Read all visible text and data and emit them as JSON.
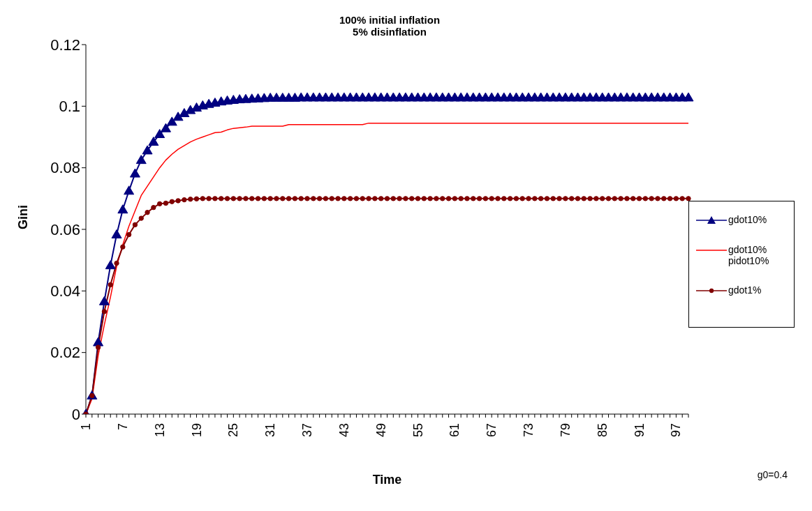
{
  "chart_data": {
    "type": "line",
    "title": "100% initial inflation",
    "subtitle": "5% disinflation",
    "xlabel": "Time",
    "ylabel": "Gini",
    "annotations": [
      "g0=0.4"
    ],
    "categories": [
      "1",
      null,
      null,
      null,
      null,
      null,
      "7",
      null,
      null,
      null,
      null,
      null,
      "13",
      null,
      null,
      null,
      null,
      null,
      "19",
      null,
      null,
      null,
      null,
      null,
      "25",
      null,
      null,
      null,
      null,
      null,
      "31",
      null,
      null,
      null,
      null,
      null,
      "37",
      null,
      null,
      null,
      null,
      null,
      "43",
      null,
      null,
      null,
      null,
      null,
      "49",
      null,
      null,
      null,
      null,
      null,
      "55",
      null,
      null,
      null,
      null,
      null,
      "61",
      null,
      null,
      null,
      null,
      null,
      "67",
      null,
      null,
      null,
      null,
      null,
      "73",
      null,
      null,
      null,
      null,
      null,
      "79",
      null,
      null,
      null,
      null,
      null,
      "85",
      null,
      null,
      null,
      null,
      null,
      "91",
      null,
      null,
      null,
      null,
      null,
      "97",
      null,
      null
    ],
    "series": [
      {
        "name": "gdot10%",
        "color": "#000080",
        "marker": "triangle",
        "values": [
          0,
          0.006,
          0.0233,
          0.0366,
          0.0483,
          0.0583,
          0.0664,
          0.0725,
          0.0781,
          0.0825,
          0.0856,
          0.0884,
          0.0909,
          0.0928,
          0.0949,
          0.0965,
          0.0977,
          0.0987,
          0.0995,
          0.1002,
          0.1007,
          0.1011,
          0.1015,
          0.1018,
          0.102,
          0.1022,
          0.1023,
          0.1024,
          0.1025,
          0.1026,
          0.1027,
          0.1027,
          0.1027,
          0.1027,
          0.1027,
          0.1028,
          0.1028,
          0.1028,
          0.1028,
          0.1028,
          0.1028,
          0.1028,
          0.1028,
          0.1028,
          0.1028,
          0.1028,
          0.1028,
          0.1028,
          0.1028,
          0.1028,
          0.1028,
          0.1028,
          0.1028,
          0.1028,
          0.1028,
          0.1028,
          0.1028,
          0.1028,
          0.1028,
          0.1028,
          0.1028,
          0.1028,
          0.1028,
          0.1028,
          0.1028,
          0.1028,
          0.1028,
          0.1028,
          0.1028,
          0.1028,
          0.1028,
          0.1028,
          0.1028,
          0.1028,
          0.1028,
          0.1028,
          0.1028,
          0.1028,
          0.1028,
          0.1028,
          0.1028,
          0.1028,
          0.1028,
          0.1028,
          0.1028,
          0.1028,
          0.1028,
          0.1028,
          0.1028,
          0.1028,
          0.1028,
          0.1028,
          0.1028,
          0.1028,
          0.1028,
          0.1028,
          0.1028,
          0.1028,
          0.1028
        ]
      },
      {
        "name": "gdot10%\npidot10%",
        "color": "#ff0000",
        "marker": "none",
        "values": [
          0,
          0.005,
          0.019,
          0.029,
          0.038,
          0.048,
          0.055,
          0.061,
          0.066,
          0.071,
          0.074,
          0.077,
          0.08,
          0.0825,
          0.0844,
          0.086,
          0.0872,
          0.0884,
          0.0893,
          0.09,
          0.0907,
          0.0914,
          0.0916,
          0.0923,
          0.0928,
          0.093,
          0.0932,
          0.0935,
          0.0935,
          0.0935,
          0.0935,
          0.0935,
          0.0935,
          0.094,
          0.094,
          0.094,
          0.094,
          0.094,
          0.094,
          0.094,
          0.094,
          0.094,
          0.094,
          0.094,
          0.094,
          0.094,
          0.0945,
          0.0945,
          0.0945,
          0.0945,
          0.0945,
          0.0945,
          0.0945,
          0.0945,
          0.0945,
          0.0945,
          0.0945,
          0.0945,
          0.0945,
          0.0945,
          0.0945,
          0.0945,
          0.0945,
          0.0945,
          0.0945,
          0.0945,
          0.0945,
          0.0945,
          0.0945,
          0.0945,
          0.0945,
          0.0945,
          0.0945,
          0.0945,
          0.0945,
          0.0945,
          0.0945,
          0.0945,
          0.0945,
          0.0945,
          0.0945,
          0.0945,
          0.0945,
          0.0945,
          0.0945,
          0.0945,
          0.0945,
          0.0945,
          0.0945,
          0.0945,
          0.0945,
          0.0945,
          0.0945,
          0.0945,
          0.0945,
          0.0945,
          0.0945,
          0.0945,
          0.0945
        ]
      },
      {
        "name": "gdot1%",
        "color": "#800000",
        "marker": "circle",
        "values": [
          0,
          0.006,
          0.0217,
          0.0333,
          0.042,
          0.049,
          0.0543,
          0.0583,
          0.0615,
          0.0636,
          0.0655,
          0.0671,
          0.0683,
          0.0685,
          0.069,
          0.0693,
          0.0696,
          0.0698,
          0.0699,
          0.07,
          0.07,
          0.07,
          0.07,
          0.07,
          0.07,
          0.07,
          0.07,
          0.07,
          0.07,
          0.07,
          0.07,
          0.07,
          0.07,
          0.07,
          0.07,
          0.07,
          0.07,
          0.07,
          0.07,
          0.07,
          0.07,
          0.07,
          0.07,
          0.07,
          0.07,
          0.07,
          0.07,
          0.07,
          0.07,
          0.07,
          0.07,
          0.07,
          0.07,
          0.07,
          0.07,
          0.07,
          0.07,
          0.07,
          0.07,
          0.07,
          0.07,
          0.07,
          0.07,
          0.07,
          0.07,
          0.07,
          0.07,
          0.07,
          0.07,
          0.07,
          0.07,
          0.07,
          0.07,
          0.07,
          0.07,
          0.07,
          0.07,
          0.07,
          0.07,
          0.07,
          0.07,
          0.07,
          0.07,
          0.07,
          0.07,
          0.07,
          0.07,
          0.07,
          0.07,
          0.07,
          0.07,
          0.07,
          0.07,
          0.07,
          0.07,
          0.07,
          0.07,
          0.07,
          0.07
        ]
      }
    ],
    "ylim": [
      0,
      0.12
    ],
    "yticks": [
      0,
      0.02,
      0.04,
      0.06,
      0.08,
      0.1,
      0.12
    ],
    "grid": false,
    "legend": "right"
  }
}
